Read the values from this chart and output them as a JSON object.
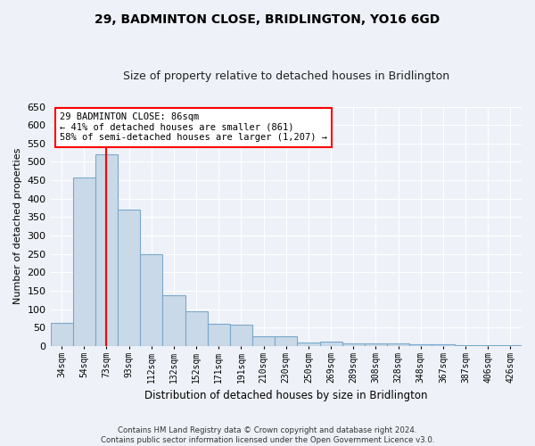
{
  "title": "29, BADMINTON CLOSE, BRIDLINGTON, YO16 6GD",
  "subtitle": "Size of property relative to detached houses in Bridlington",
  "xlabel": "Distribution of detached houses by size in Bridlington",
  "ylabel": "Number of detached properties",
  "bar_color": "#c9d9e8",
  "bar_edge_color": "#7aa8cc",
  "categories": [
    "34sqm",
    "54sqm",
    "73sqm",
    "93sqm",
    "112sqm",
    "132sqm",
    "152sqm",
    "171sqm",
    "191sqm",
    "210sqm",
    "230sqm",
    "250sqm",
    "269sqm",
    "289sqm",
    "308sqm",
    "328sqm",
    "348sqm",
    "367sqm",
    "387sqm",
    "406sqm",
    "426sqm"
  ],
  "values": [
    62,
    458,
    521,
    370,
    248,
    138,
    93,
    60,
    57,
    26,
    26,
    10,
    12,
    6,
    6,
    8,
    5,
    4,
    3,
    2,
    2
  ],
  "ylim": [
    0,
    650
  ],
  "yticks": [
    0,
    50,
    100,
    150,
    200,
    250,
    300,
    350,
    400,
    450,
    500,
    550,
    600,
    650
  ],
  "annotation_text": "29 BADMINTON CLOSE: 86sqm\n← 41% of detached houses are smaller (861)\n58% of semi-detached houses are larger (1,207) →",
  "red_line_x": 2,
  "footer1": "Contains HM Land Registry data © Crown copyright and database right 2024.",
  "footer2": "Contains public sector information licensed under the Open Government Licence v3.0.",
  "bg_color": "#eef2f8",
  "plot_bg_color": "#eef2f8",
  "grid_color": "#ffffff"
}
